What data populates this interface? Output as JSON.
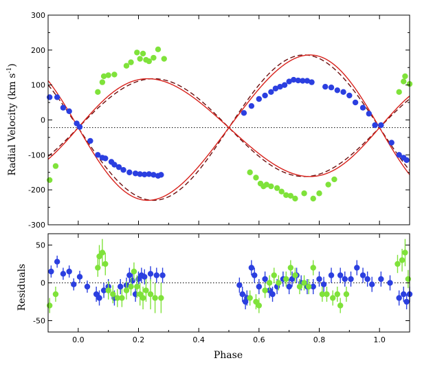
{
  "colors": {
    "primary": "#2b3fe0",
    "secondary": "#7fe23a",
    "model_solid": "#d8201a",
    "model_dashed": "#6a0d0d",
    "axis": "#000000"
  },
  "chart_data": [
    {
      "id": "rv",
      "type": "scatter",
      "ylabel_main": "Radial Velocity (km s",
      "ylabel_sup": "-1",
      "ylabel_close": ")",
      "xlim": [
        -0.1,
        1.1
      ],
      "ylim": [
        -300,
        300
      ],
      "yticks": [
        -300,
        -200,
        -100,
        0,
        100,
        200,
        300
      ],
      "ytick_labels": [
        "-300",
        "-200",
        "-100",
        "0",
        "100",
        "200",
        "300"
      ],
      "gamma": -22,
      "model": {
        "gamma": -22,
        "K1": 140,
        "K2": 208,
        "ecc": 0.06,
        "omega_deg": 270
      },
      "series": [
        {
          "name": "Primary (blue)",
          "points": [
            [
              -0.095,
              65
            ],
            [
              -0.07,
              65
            ],
            [
              -0.05,
              35
            ],
            [
              -0.03,
              25
            ],
            [
              -0.005,
              -10
            ],
            [
              0.005,
              -20
            ],
            [
              0.04,
              -60
            ],
            [
              0.065,
              -100
            ],
            [
              0.08,
              -108
            ],
            [
              0.09,
              -110
            ],
            [
              0.11,
              -120
            ],
            [
              0.12,
              -128
            ],
            [
              0.135,
              -135
            ],
            [
              0.15,
              -143
            ],
            [
              0.17,
              -150
            ],
            [
              0.19,
              -153
            ],
            [
              0.205,
              -155
            ],
            [
              0.22,
              -156
            ],
            [
              0.235,
              -155
            ],
            [
              0.25,
              -157
            ],
            [
              0.265,
              -160
            ],
            [
              0.275,
              -157
            ],
            [
              0.55,
              20
            ],
            [
              0.575,
              40
            ],
            [
              0.6,
              60
            ],
            [
              0.62,
              70
            ],
            [
              0.64,
              80
            ],
            [
              0.655,
              90
            ],
            [
              0.67,
              95
            ],
            [
              0.685,
              100
            ],
            [
              0.7,
              110
            ],
            [
              0.715,
              115
            ],
            [
              0.73,
              113
            ],
            [
              0.745,
              112
            ],
            [
              0.76,
              112
            ],
            [
              0.775,
              108
            ],
            [
              0.82,
              95
            ],
            [
              0.84,
              93
            ],
            [
              0.86,
              85
            ],
            [
              0.88,
              80
            ],
            [
              0.9,
              70
            ],
            [
              0.92,
              50
            ],
            [
              0.945,
              35
            ],
            [
              0.965,
              18
            ],
            [
              0.985,
              -15
            ],
            [
              1.005,
              -15
            ],
            [
              1.04,
              -65
            ],
            [
              1.065,
              -100
            ],
            [
              1.08,
              -108
            ],
            [
              1.09,
              -115
            ]
          ]
        },
        {
          "name": "Secondary (green)",
          "points": [
            [
              -0.095,
              -172
            ],
            [
              -0.075,
              -132
            ],
            [
              0.065,
              80
            ],
            [
              0.08,
              108
            ],
            [
              0.085,
              125
            ],
            [
              0.1,
              128
            ],
            [
              0.12,
              130
            ],
            [
              0.16,
              155
            ],
            [
              0.175,
              165
            ],
            [
              0.195,
              193
            ],
            [
              0.205,
              175
            ],
            [
              0.215,
              190
            ],
            [
              0.225,
              172
            ],
            [
              0.235,
              168
            ],
            [
              0.25,
              178
            ],
            [
              0.265,
              202
            ],
            [
              0.285,
              175
            ],
            [
              0.57,
              -150
            ],
            [
              0.59,
              -165
            ],
            [
              0.605,
              -182
            ],
            [
              0.615,
              -190
            ],
            [
              0.625,
              -185
            ],
            [
              0.64,
              -190
            ],
            [
              0.66,
              -195
            ],
            [
              0.675,
              -205
            ],
            [
              0.69,
              -215
            ],
            [
              0.705,
              -217
            ],
            [
              0.72,
              -225
            ],
            [
              0.75,
              -210
            ],
            [
              0.78,
              -225
            ],
            [
              0.8,
              -210
            ],
            [
              0.83,
              -185
            ],
            [
              0.85,
              -170
            ],
            [
              1.065,
              80
            ],
            [
              1.08,
              110
            ],
            [
              1.085,
              125
            ],
            [
              1.1,
              103
            ]
          ]
        }
      ]
    },
    {
      "id": "res",
      "type": "scatter",
      "xlabel": "Phase",
      "ylabel": "Residuals",
      "xlim": [
        -0.1,
        1.1
      ],
      "ylim": [
        -65,
        65
      ],
      "yticks": [
        -50,
        0,
        50
      ],
      "ytick_labels": [
        "-50",
        "0",
        "50"
      ],
      "xticks": [
        0.0,
        0.2,
        0.4,
        0.6,
        0.8,
        1.0
      ],
      "xtick_labels": [
        "0.0",
        "0.2",
        "0.4",
        "0.6",
        "0.8",
        "1.0"
      ],
      "series": [
        {
          "name": "Primary residuals (blue)",
          "points": [
            [
              -0.09,
              15,
              8
            ],
            [
              -0.07,
              28,
              8
            ],
            [
              -0.05,
              12,
              8
            ],
            [
              -0.03,
              15,
              8
            ],
            [
              -0.015,
              -2,
              8
            ],
            [
              0.005,
              8,
              8
            ],
            [
              0.03,
              -5,
              8
            ],
            [
              0.06,
              -15,
              10
            ],
            [
              0.07,
              -20,
              10
            ],
            [
              0.085,
              -10,
              10
            ],
            [
              0.1,
              -5,
              10
            ],
            [
              0.12,
              -20,
              10
            ],
            [
              0.14,
              -5,
              10
            ],
            [
              0.16,
              -3,
              10
            ],
            [
              0.17,
              10,
              10
            ],
            [
              0.18,
              3,
              10
            ],
            [
              0.19,
              -15,
              10
            ],
            [
              0.2,
              5,
              10
            ],
            [
              0.21,
              10,
              10
            ],
            [
              0.22,
              8,
              10
            ],
            [
              0.24,
              12,
              10
            ],
            [
              0.26,
              10,
              10
            ],
            [
              0.28,
              10,
              10
            ],
            [
              0.535,
              -3,
              10
            ],
            [
              0.545,
              -15,
              10
            ],
            [
              0.555,
              -25,
              10
            ],
            [
              0.56,
              -20,
              10
            ],
            [
              0.575,
              20,
              10
            ],
            [
              0.585,
              10,
              10
            ],
            [
              0.6,
              -5,
              10
            ],
            [
              0.62,
              5,
              10
            ],
            [
              0.635,
              -10,
              10
            ],
            [
              0.645,
              -15,
              10
            ],
            [
              0.66,
              -5,
              10
            ],
            [
              0.68,
              5,
              10
            ],
            [
              0.7,
              -5,
              10
            ],
            [
              0.71,
              5,
              10
            ],
            [
              0.725,
              10,
              10
            ],
            [
              0.74,
              0,
              10
            ],
            [
              0.76,
              -5,
              10
            ],
            [
              0.78,
              -5,
              10
            ],
            [
              0.8,
              5,
              10
            ],
            [
              0.815,
              -2,
              10
            ],
            [
              0.84,
              10,
              10
            ],
            [
              0.87,
              10,
              10
            ],
            [
              0.885,
              5,
              10
            ],
            [
              0.905,
              5,
              10
            ],
            [
              0.925,
              20,
              10
            ],
            [
              0.945,
              10,
              10
            ],
            [
              0.96,
              5,
              10
            ],
            [
              0.975,
              -2,
              10
            ],
            [
              1.005,
              5,
              10
            ],
            [
              1.035,
              0,
              10
            ],
            [
              1.065,
              -20,
              10
            ],
            [
              1.08,
              -15,
              10
            ],
            [
              1.09,
              -25,
              10
            ],
            [
              1.1,
              -15,
              10
            ]
          ]
        },
        {
          "name": "Secondary residuals (green)",
          "points": [
            [
              -0.095,
              -30,
              10
            ],
            [
              -0.075,
              -15,
              10
            ],
            [
              0.065,
              20,
              12
            ],
            [
              0.07,
              35,
              15
            ],
            [
              0.08,
              40,
              18
            ],
            [
              0.09,
              25,
              15
            ],
            [
              0.1,
              -10,
              12
            ],
            [
              0.115,
              -15,
              12
            ],
            [
              0.13,
              -20,
              12
            ],
            [
              0.145,
              -20,
              12
            ],
            [
              0.16,
              -10,
              12
            ],
            [
              0.175,
              -5,
              12
            ],
            [
              0.185,
              15,
              12
            ],
            [
              0.195,
              -5,
              15
            ],
            [
              0.205,
              -15,
              15
            ],
            [
              0.215,
              -20,
              15
            ],
            [
              0.225,
              -10,
              15
            ],
            [
              0.24,
              -15,
              20
            ],
            [
              0.255,
              -20,
              20
            ],
            [
              0.275,
              -20,
              20
            ],
            [
              0.57,
              -20,
              10
            ],
            [
              0.59,
              -25,
              10
            ],
            [
              0.6,
              -30,
              10
            ],
            [
              0.62,
              -10,
              10
            ],
            [
              0.635,
              0,
              10
            ],
            [
              0.65,
              10,
              10
            ],
            [
              0.665,
              0,
              10
            ],
            [
              0.69,
              5,
              10
            ],
            [
              0.705,
              20,
              10
            ],
            [
              0.72,
              10,
              10
            ],
            [
              0.735,
              -5,
              10
            ],
            [
              0.75,
              0,
              10
            ],
            [
              0.765,
              -5,
              10
            ],
            [
              0.78,
              20,
              10
            ],
            [
              0.81,
              -15,
              10
            ],
            [
              0.825,
              -15,
              10
            ],
            [
              0.845,
              -20,
              10
            ],
            [
              0.86,
              -15,
              10
            ],
            [
              0.87,
              -30,
              10
            ],
            [
              0.89,
              -15,
              10
            ],
            [
              1.06,
              25,
              12
            ],
            [
              1.075,
              30,
              15
            ],
            [
              1.085,
              40,
              18
            ],
            [
              1.095,
              5,
              12
            ]
          ]
        }
      ]
    }
  ]
}
